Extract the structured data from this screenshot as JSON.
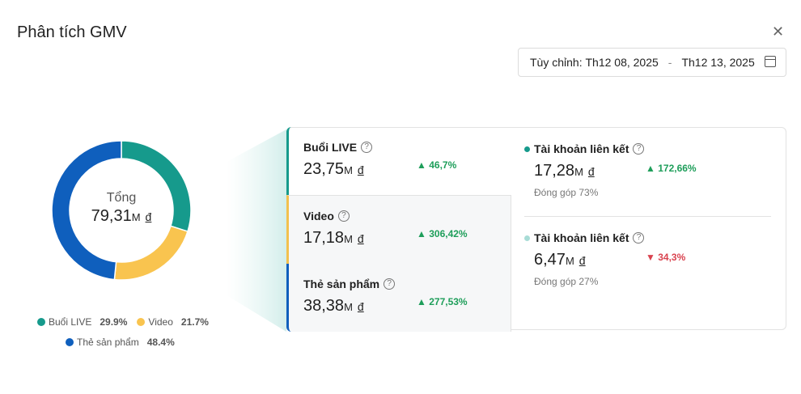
{
  "title": "Phân tích GMV",
  "close_icon": "close-icon",
  "date_range": {
    "label": "Tùy chỉnh:",
    "start": "Th12 08, 2025",
    "sep": "-",
    "end": "Th12 13, 2025"
  },
  "donut": {
    "center_label": "Tổng",
    "total": "79,31",
    "unit": "M",
    "currency": "đ"
  },
  "chart_data": {
    "type": "pie",
    "categories": [
      "Buổi LIVE",
      "Video",
      "Thẻ sản phẩm"
    ],
    "values": [
      29.9,
      21.7,
      48.4
    ],
    "colors": [
      "#169a8c",
      "#f9c44f",
      "#0f5fbd"
    ]
  },
  "legend": [
    {
      "label": "Buổi LIVE",
      "pct": "29.9%"
    },
    {
      "label": "Video",
      "pct": "21.7%"
    },
    {
      "label": "Thẻ sản phẩm",
      "pct": "48.4%"
    }
  ],
  "segments": [
    {
      "label": "Buổi LIVE",
      "value": "23,75",
      "unit": "M",
      "currency": "đ",
      "change": "46,7%"
    },
    {
      "label": "Video",
      "value": "17,18",
      "unit": "M",
      "currency": "đ",
      "change": "306,42%"
    },
    {
      "label": "Thẻ sản phẩm",
      "value": "38,38",
      "unit": "M",
      "currency": "đ",
      "change": "277,53%"
    }
  ],
  "accounts": [
    {
      "label": "Tài khoản liên kết",
      "value": "17,28",
      "unit": "M",
      "currency": "đ",
      "change": "172,66%",
      "contribution": "Đóng góp 73%",
      "dot": "#169a8c"
    },
    {
      "label": "Tài khoản liên kết",
      "value": "6,47",
      "unit": "M",
      "currency": "đ",
      "change": "34,3%",
      "contribution": "Đóng góp 27%",
      "dot": "#a8dcd6"
    }
  ]
}
